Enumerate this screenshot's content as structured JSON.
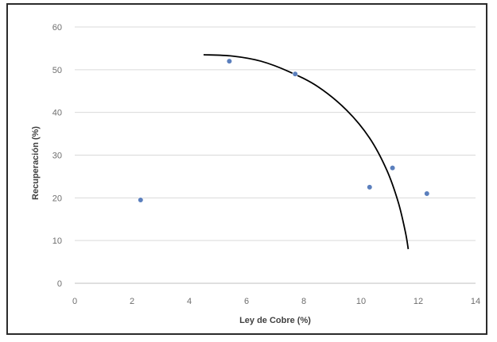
{
  "chart_data": {
    "type": "scatter",
    "title": "",
    "xlabel": "Ley de Cobre (%)",
    "ylabel": "Recuperación (%)",
    "xlim": [
      0,
      14
    ],
    "ylim": [
      0,
      60
    ],
    "xticks": [
      0,
      2,
      4,
      6,
      8,
      10,
      12,
      14
    ],
    "yticks": [
      0,
      10,
      20,
      30,
      40,
      50,
      60
    ],
    "grid": "horizontal",
    "legend": "none",
    "points": [
      {
        "x": 2.3,
        "y": 19.5
      },
      {
        "x": 5.4,
        "y": 52.0
      },
      {
        "x": 7.7,
        "y": 49.0
      },
      {
        "x": 10.3,
        "y": 22.5
      },
      {
        "x": 11.1,
        "y": 27.0
      },
      {
        "x": 12.3,
        "y": 21.0
      }
    ],
    "trend_curve": [
      {
        "x": 4.5,
        "y": 53.5
      },
      {
        "x": 5.5,
        "y": 53.2
      },
      {
        "x": 6.5,
        "y": 52.0
      },
      {
        "x": 7.5,
        "y": 49.5
      },
      {
        "x": 8.5,
        "y": 46.0
      },
      {
        "x": 9.5,
        "y": 40.5
      },
      {
        "x": 10.3,
        "y": 34.0
      },
      {
        "x": 10.9,
        "y": 26.5
      },
      {
        "x": 11.3,
        "y": 19.0
      },
      {
        "x": 11.55,
        "y": 12.0
      },
      {
        "x": 11.65,
        "y": 8.0
      }
    ],
    "colors": {
      "marker": "#5b7fbd",
      "curve": "#000000",
      "grid": "#d9d9d9",
      "axis": "#bfbfbf",
      "tick_text": "#6e6e6e",
      "title_text": "#404040",
      "frame": "#2b2b2b"
    }
  }
}
